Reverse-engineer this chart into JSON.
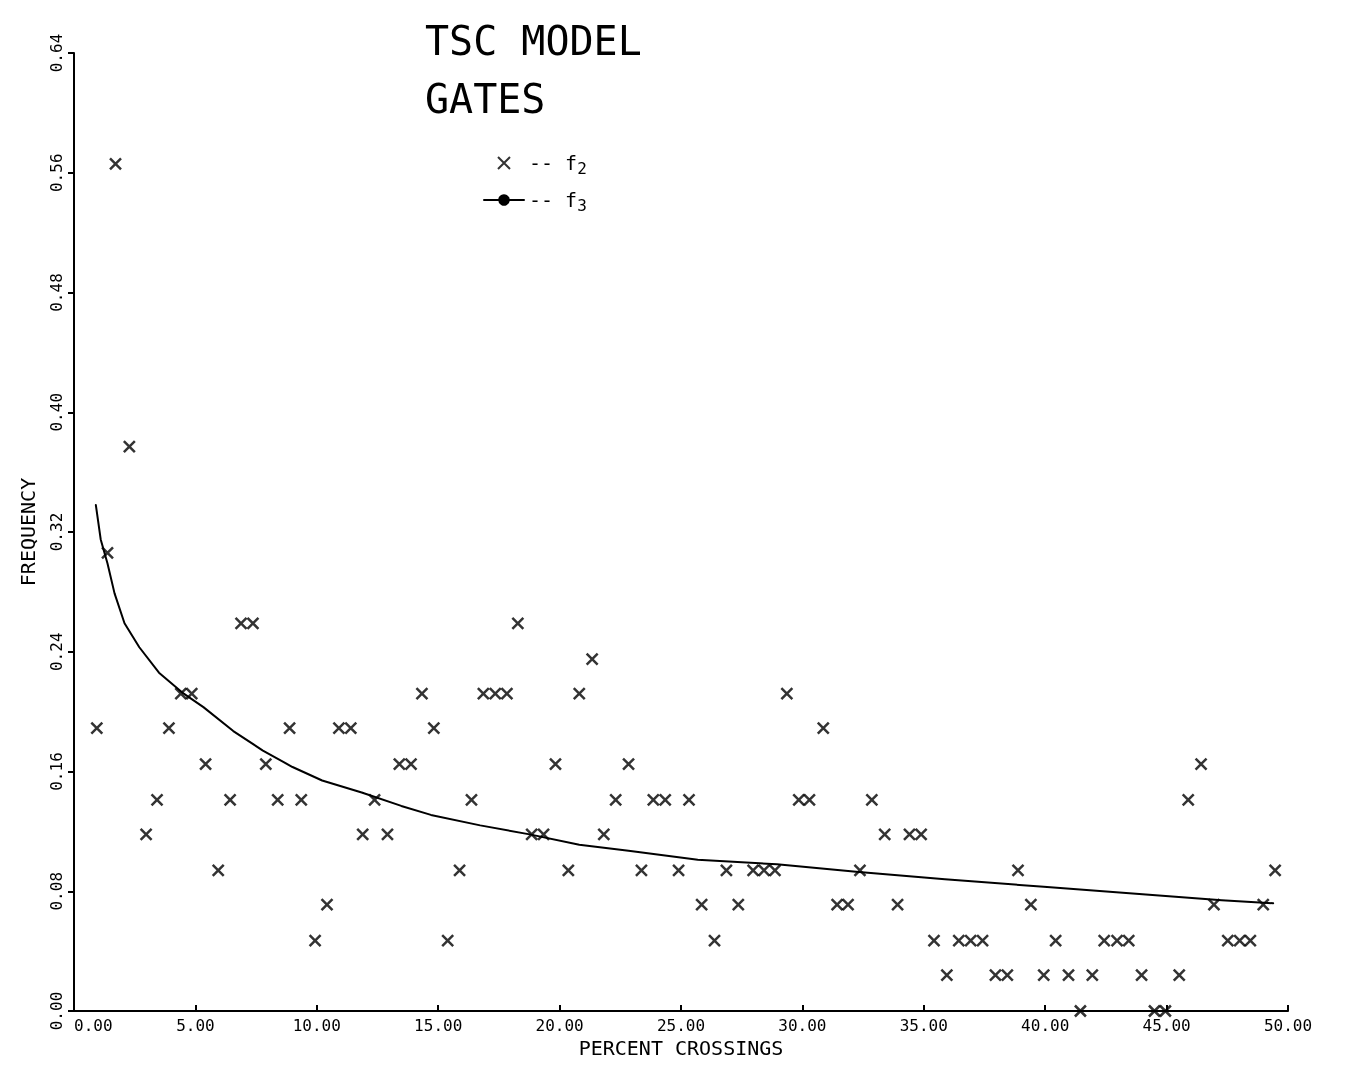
{
  "chart_data": {
    "type": "scatter",
    "title": "TSC MODEL",
    "subtitle": "GATES",
    "xlabel": "PERCENT CROSSINGS",
    "ylabel": "FREQUENCY",
    "xlim": [
      0,
      50
    ],
    "xticks": [
      {
        "value": 0,
        "label": "0.00"
      },
      {
        "value": 5,
        "label": "5.00"
      },
      {
        "value": 10,
        "label": "10.00"
      },
      {
        "value": 15,
        "label": "15.00"
      },
      {
        "value": 20,
        "label": "20.00"
      },
      {
        "value": 25,
        "label": "25.00"
      },
      {
        "value": 30,
        "label": "30.00"
      },
      {
        "value": 35,
        "label": "35.00"
      },
      {
        "value": 40,
        "label": "40.00"
      },
      {
        "value": 45,
        "label": "45.00"
      },
      {
        "value": 50,
        "label": "50.00"
      }
    ],
    "ylim": [
      0,
      0.64
    ],
    "yticks": [
      {
        "value": 0,
        "label": "0.00"
      },
      {
        "value": 0.08,
        "label": "0.08"
      },
      {
        "value": 0.16,
        "label": "0.16"
      },
      {
        "value": 0.24,
        "label": "0.24"
      },
      {
        "value": 0.32,
        "label": "0.32"
      },
      {
        "value": 0.4,
        "label": "0.40"
      },
      {
        "value": 0.48,
        "label": "0.48"
      },
      {
        "value": 0.56,
        "label": "0.56"
      },
      {
        "value": 0.64,
        "label": "0.64"
      }
    ],
    "grid": false,
    "legend": "top",
    "series": [
      {
        "name": "-- f$_{2}$",
        "marker": "cross",
        "color": "#000000",
        "x": [
          0.94,
          1.38,
          1.71,
          2.28,
          2.97,
          3.42,
          3.91,
          4.4,
          4.85,
          5.42,
          5.94,
          6.43,
          6.88,
          7.37,
          7.9,
          8.39,
          8.88,
          9.36,
          9.93,
          10.42,
          10.91,
          11.4,
          11.89,
          12.38,
          12.91,
          13.4,
          13.88,
          14.33,
          14.82,
          15.39,
          15.88,
          16.37,
          16.86,
          17.35,
          17.83,
          18.28,
          18.85,
          19.34,
          19.83,
          20.36,
          20.81,
          21.34,
          21.82,
          22.31,
          22.84,
          23.37,
          23.86,
          24.35,
          24.9,
          25.33,
          25.85,
          26.38,
          26.87,
          27.36,
          27.97,
          28.42,
          28.87,
          29.36,
          29.85,
          30.29,
          30.86,
          31.43,
          31.88,
          32.37,
          32.86,
          33.39,
          33.92,
          34.41,
          34.89,
          35.42,
          35.95,
          36.44,
          36.93,
          37.42,
          37.95,
          38.44,
          38.88,
          39.41,
          39.94,
          40.43,
          40.96,
          41.45,
          41.94,
          42.43,
          42.96,
          43.44,
          43.97,
          44.5,
          44.95,
          45.52,
          45.89,
          46.42,
          46.95,
          47.52,
          48.01,
          48.45,
          48.98,
          49.47
        ],
        "values": [
          0.189,
          0.306,
          0.566,
          0.377,
          0.118,
          0.141,
          0.189,
          0.212,
          0.212,
          0.165,
          0.094,
          0.141,
          0.259,
          0.259,
          0.165,
          0.141,
          0.189,
          0.141,
          0.047,
          0.071,
          0.189,
          0.189,
          0.118,
          0.141,
          0.118,
          0.165,
          0.165,
          0.212,
          0.189,
          0.047,
          0.094,
          0.141,
          0.212,
          0.212,
          0.212,
          0.259,
          0.118,
          0.118,
          0.165,
          0.094,
          0.212,
          0.235,
          0.118,
          0.141,
          0.165,
          0.094,
          0.141,
          0.141,
          0.094,
          0.141,
          0.071,
          0.047,
          0.094,
          0.071,
          0.094,
          0.094,
          0.094,
          0.212,
          0.141,
          0.141,
          0.189,
          0.071,
          0.071,
          0.094,
          0.141,
          0.118,
          0.071,
          0.118,
          0.118,
          0.047,
          0.024,
          0.047,
          0.047,
          0.047,
          0.024,
          0.024,
          0.094,
          0.071,
          0.024,
          0.047,
          0.024,
          0,
          0.024,
          0.047,
          0.047,
          0.047,
          0.024,
          0,
          0,
          0.024,
          0.141,
          0.165,
          0.071,
          0.047,
          0.047,
          0.047,
          0.071,
          0.094
        ]
      },
      {
        "name": "-- f$_{3}$",
        "type": "line",
        "marker": "none",
        "line_style": "solid",
        "color": "#000000",
        "x": [
          0.9,
          1.1,
          1.38,
          1.67,
          2.08,
          2.69,
          3.5,
          4.52,
          5.33,
          6.56,
          7.78,
          9.0,
          10.22,
          11.85,
          13.48,
          14.7,
          16.73,
          18.77,
          20.81,
          22.84,
          25.69,
          28.95,
          32.21,
          35.87,
          39.94,
          44.01,
          47.27,
          49.39
        ],
        "values": [
          0.338,
          0.315,
          0.299,
          0.279,
          0.259,
          0.243,
          0.226,
          0.212,
          0.203,
          0.187,
          0.174,
          0.163,
          0.154,
          0.146,
          0.137,
          0.131,
          0.124,
          0.118,
          0.111,
          0.107,
          0.101,
          0.098,
          0.093,
          0.088,
          0.083,
          0.078,
          0.074,
          0.072
        ]
      }
    ]
  }
}
